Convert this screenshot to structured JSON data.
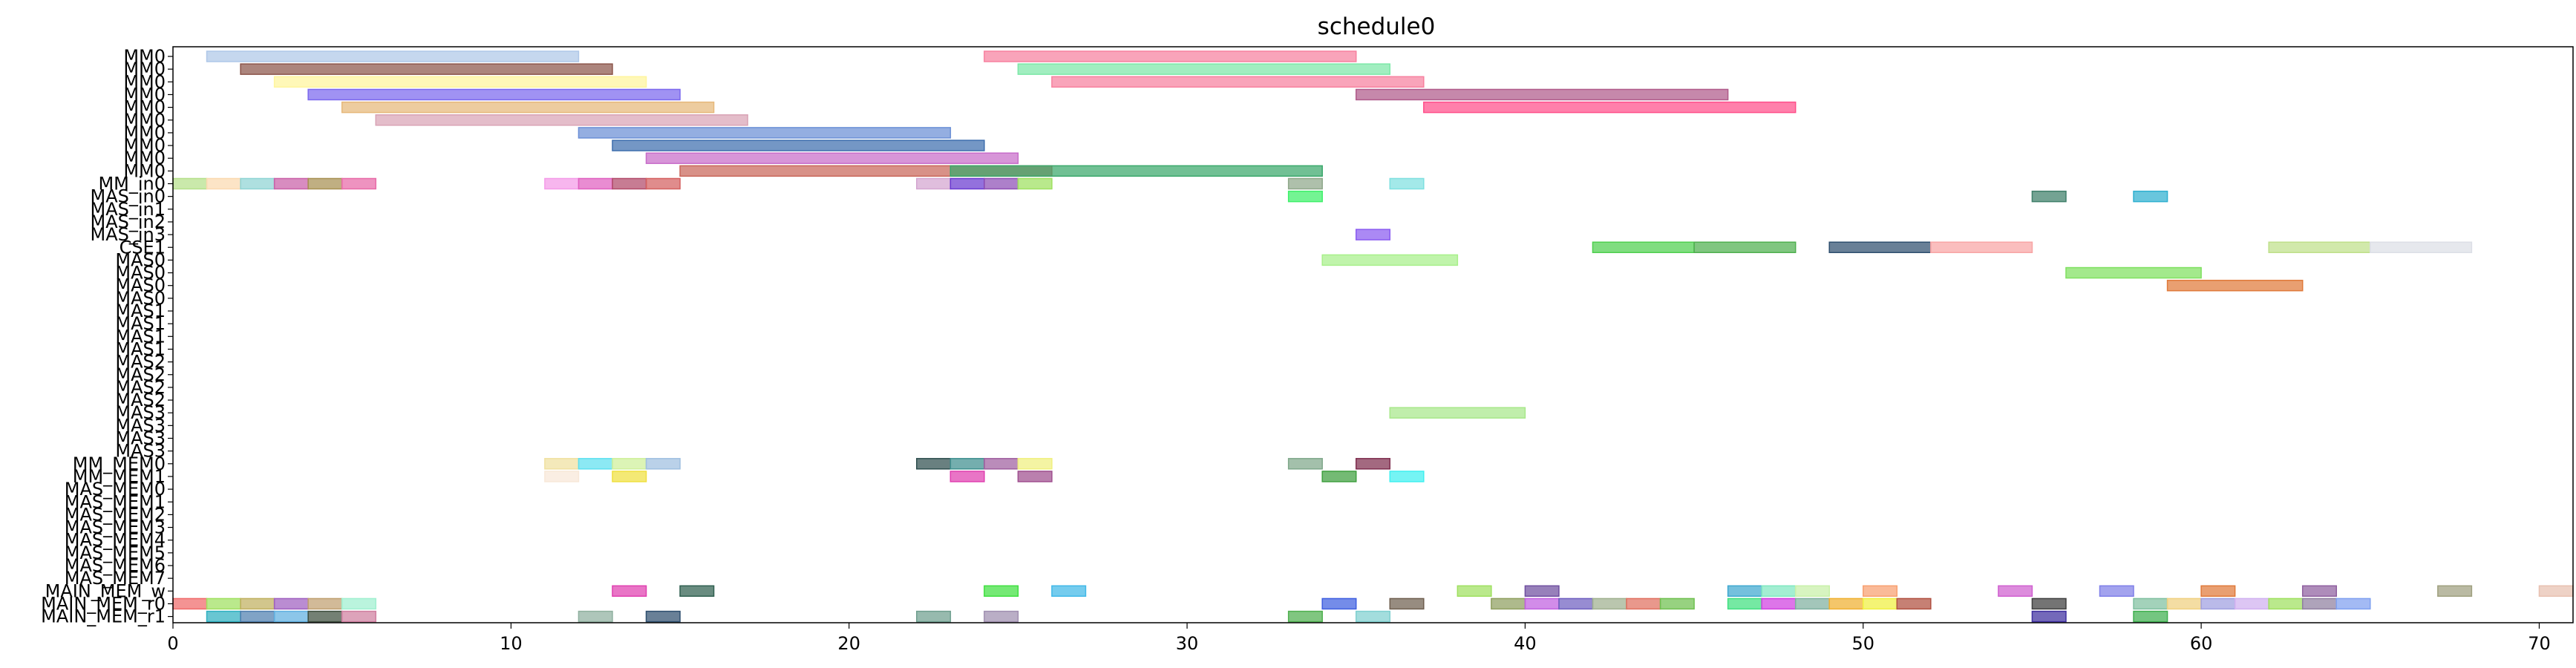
{
  "chart_data": {
    "type": "gantt",
    "title": "schedule0",
    "xlabel": "",
    "ylabel": "",
    "xlim": [
      0,
      71
    ],
    "grid": false,
    "x_ticks": [
      0,
      10,
      20,
      30,
      40,
      50,
      60,
      70
    ],
    "rows": [
      "MM0",
      "MM0",
      "MM0",
      "MM0",
      "MM0",
      "MM0",
      "MM0",
      "MM0",
      "MM0",
      "MM0",
      "MM_in0",
      "MAS_in0",
      "MAS_in1",
      "MAS_in2",
      "MAS_in3",
      "CSE1",
      "MAS0",
      "MAS0",
      "MAS0",
      "MAS0",
      "MAS1",
      "MAS1",
      "MAS1",
      "MAS1",
      "MAS2",
      "MAS2",
      "MAS2",
      "MAS2",
      "MAS3",
      "MAS3",
      "MAS3",
      "MAS3",
      "MM_MEM0",
      "MM_MEM1",
      "MAS_MEM0",
      "MAS_MEM1",
      "MAS_MEM2",
      "MAS_MEM3",
      "MAS_MEM4",
      "MAS_MEM5",
      "MAS_MEM6",
      "MAS_MEM7",
      "MAIN_MEM_w",
      "MAIN_MEM_r0",
      "MAIN_MEM_r1"
    ],
    "tasks": [
      {
        "row": 0,
        "start": 1,
        "end": 12,
        "color": "#aec7e8"
      },
      {
        "row": 0,
        "start": 24,
        "end": 35,
        "color": "#f7819f"
      },
      {
        "row": 1,
        "start": 2,
        "end": 13,
        "color": "#8c564b"
      },
      {
        "row": 1,
        "start": 25,
        "end": 36,
        "color": "#7de8a8"
      },
      {
        "row": 2,
        "start": 3,
        "end": 14,
        "color": "#fff59d"
      },
      {
        "row": 2,
        "start": 26,
        "end": 37,
        "color": "#f7819f"
      },
      {
        "row": 3,
        "start": 4,
        "end": 15,
        "color": "#7b68ee"
      },
      {
        "row": 3,
        "start": 35,
        "end": 46,
        "color": "#b05a8a"
      },
      {
        "row": 4,
        "start": 5,
        "end": 16,
        "color": "#e6b87a"
      },
      {
        "row": 4,
        "start": 37,
        "end": 48,
        "color": "#ff4f8a"
      },
      {
        "row": 5,
        "start": 6,
        "end": 17,
        "color": "#d9a3b5"
      },
      {
        "row": 6,
        "start": 12,
        "end": 23,
        "color": "#6b8fd6"
      },
      {
        "row": 7,
        "start": 13,
        "end": 24,
        "color": "#3f6fae"
      },
      {
        "row": 8,
        "start": 14,
        "end": 25,
        "color": "#c76cc9"
      },
      {
        "row": 9,
        "start": 15,
        "end": 26,
        "color": "#c9665a"
      },
      {
        "row": 9,
        "start": 23,
        "end": 34,
        "color": "#3aa86b"
      },
      {
        "row": 10,
        "start": 0,
        "end": 1,
        "color": "#b5e08a"
      },
      {
        "row": 10,
        "start": 1,
        "end": 2,
        "color": "#fbd9b0"
      },
      {
        "row": 10,
        "start": 2,
        "end": 3,
        "color": "#8fd4d4"
      },
      {
        "row": 10,
        "start": 3,
        "end": 4,
        "color": "#c960a8"
      },
      {
        "row": 10,
        "start": 4,
        "end": 5,
        "color": "#a89052"
      },
      {
        "row": 10,
        "start": 5,
        "end": 6,
        "color": "#e86aa8"
      },
      {
        "row": 10,
        "start": 11,
        "end": 12,
        "color": "#f49ae8"
      },
      {
        "row": 10,
        "start": 12,
        "end": 13,
        "color": "#e060c0"
      },
      {
        "row": 10,
        "start": 13,
        "end": 14,
        "color": "#b24a6a"
      },
      {
        "row": 10,
        "start": 14,
        "end": 15,
        "color": "#d46060"
      },
      {
        "row": 10,
        "start": 22,
        "end": 23,
        "color": "#d4a5d0"
      },
      {
        "row": 10,
        "start": 23,
        "end": 24,
        "color": "#6a3ad0"
      },
      {
        "row": 10,
        "start": 24,
        "end": 25,
        "color": "#8e4fb5"
      },
      {
        "row": 10,
        "start": 25,
        "end": 26,
        "color": "#9ee060"
      },
      {
        "row": 10,
        "start": 33,
        "end": 34,
        "color": "#8fa88a"
      },
      {
        "row": 10,
        "start": 36,
        "end": 37,
        "color": "#7fe0e0"
      },
      {
        "row": 11,
        "start": 33,
        "end": 34,
        "color": "#3ef06a"
      },
      {
        "row": 11,
        "start": 55,
        "end": 56,
        "color": "#3f7f6a"
      },
      {
        "row": 11,
        "start": 58,
        "end": 59,
        "color": "#2fb0d0"
      },
      {
        "row": 14,
        "start": 35,
        "end": 36,
        "color": "#8a5cf0"
      },
      {
        "row": 15,
        "start": 42,
        "end": 45,
        "color": "#4fd04f"
      },
      {
        "row": 15,
        "start": 45,
        "end": 48,
        "color": "#4fb04f"
      },
      {
        "row": 15,
        "start": 49,
        "end": 52,
        "color": "#2f4f6f"
      },
      {
        "row": 15,
        "start": 52,
        "end": 55,
        "color": "#f8a5a5"
      },
      {
        "row": 15,
        "start": 62,
        "end": 65,
        "color": "#bfe08a"
      },
      {
        "row": 15,
        "start": 65,
        "end": 68,
        "color": "#dcdfe6"
      },
      {
        "row": 16,
        "start": 34,
        "end": 38,
        "color": "#a8f08a"
      },
      {
        "row": 17,
        "start": 56,
        "end": 60,
        "color": "#7fe060"
      },
      {
        "row": 18,
        "start": 59,
        "end": 63,
        "color": "#e07a3a"
      },
      {
        "row": 28,
        "start": 36,
        "end": 40,
        "color": "#a8e88a"
      },
      {
        "row": 32,
        "start": 11,
        "end": 12,
        "color": "#f0e0a0"
      },
      {
        "row": 32,
        "start": 12,
        "end": 13,
        "color": "#5fe0f0"
      },
      {
        "row": 32,
        "start": 13,
        "end": 14,
        "color": "#cff09a"
      },
      {
        "row": 32,
        "start": 14,
        "end": 15,
        "color": "#9fbfe0"
      },
      {
        "row": 32,
        "start": 22,
        "end": 23,
        "color": "#2f4f4f"
      },
      {
        "row": 32,
        "start": 23,
        "end": 24,
        "color": "#3f8f8f"
      },
      {
        "row": 32,
        "start": 24,
        "end": 25,
        "color": "#9f5f9f"
      },
      {
        "row": 32,
        "start": 25,
        "end": 26,
        "color": "#f0f07f"
      },
      {
        "row": 32,
        "start": 33,
        "end": 34,
        "color": "#7fa88a"
      },
      {
        "row": 32,
        "start": 35,
        "end": 36,
        "color": "#7f2f4f"
      },
      {
        "row": 33,
        "start": 11,
        "end": 12,
        "color": "#f8e8d8"
      },
      {
        "row": 33,
        "start": 13,
        "end": 14,
        "color": "#f0e040"
      },
      {
        "row": 33,
        "start": 23,
        "end": 24,
        "color": "#e040b0"
      },
      {
        "row": 33,
        "start": 25,
        "end": 26,
        "color": "#9f4f8f"
      },
      {
        "row": 33,
        "start": 34,
        "end": 35,
        "color": "#3fa03f"
      },
      {
        "row": 33,
        "start": 36,
        "end": 37,
        "color": "#40f0f0"
      },
      {
        "row": 42,
        "start": 13,
        "end": 14,
        "color": "#e040b0"
      },
      {
        "row": 42,
        "start": 15,
        "end": 16,
        "color": "#2f5f4f"
      },
      {
        "row": 42,
        "start": 24,
        "end": 25,
        "color": "#40e040"
      },
      {
        "row": 42,
        "start": 26,
        "end": 27,
        "color": "#40b8e8"
      },
      {
        "row": 42,
        "start": 38,
        "end": 39,
        "color": "#9fe060"
      },
      {
        "row": 42,
        "start": 40,
        "end": 41,
        "color": "#6f4fa0"
      },
      {
        "row": 42,
        "start": 46,
        "end": 47,
        "color": "#3fa8d0"
      },
      {
        "row": 42,
        "start": 47,
        "end": 48,
        "color": "#7fe8c0"
      },
      {
        "row": 42,
        "start": 48,
        "end": 49,
        "color": "#c8f0a8"
      },
      {
        "row": 42,
        "start": 50,
        "end": 51,
        "color": "#f8a070"
      },
      {
        "row": 42,
        "start": 54,
        "end": 55,
        "color": "#d060d0"
      },
      {
        "row": 42,
        "start": 57,
        "end": 58,
        "color": "#7f7fe8"
      },
      {
        "row": 42,
        "start": 60,
        "end": 61,
        "color": "#e07a3a"
      },
      {
        "row": 42,
        "start": 63,
        "end": 64,
        "color": "#8f5f9f"
      },
      {
        "row": 42,
        "start": 67,
        "end": 68,
        "color": "#9fa07f"
      },
      {
        "row": 42,
        "start": 70,
        "end": 71,
        "color": "#e8c0b0"
      },
      {
        "row": 43,
        "start": 0,
        "end": 1,
        "color": "#f06a6a"
      },
      {
        "row": 43,
        "start": 1,
        "end": 2,
        "color": "#9fe060"
      },
      {
        "row": 43,
        "start": 2,
        "end": 3,
        "color": "#c0b060"
      },
      {
        "row": 43,
        "start": 3,
        "end": 4,
        "color": "#9f60c0"
      },
      {
        "row": 43,
        "start": 4,
        "end": 5,
        "color": "#c0a070"
      },
      {
        "row": 43,
        "start": 5,
        "end": 6,
        "color": "#a0f0d0"
      },
      {
        "row": 43,
        "start": 34,
        "end": 35,
        "color": "#3f5fe0"
      },
      {
        "row": 43,
        "start": 36,
        "end": 37,
        "color": "#6f5f4f"
      },
      {
        "row": 43,
        "start": 39,
        "end": 40,
        "color": "#8f9f5f"
      },
      {
        "row": 43,
        "start": 40,
        "end": 41,
        "color": "#c060e0"
      },
      {
        "row": 43,
        "start": 41,
        "end": 42,
        "color": "#6f5fc0"
      },
      {
        "row": 43,
        "start": 42,
        "end": 43,
        "color": "#9fb08f"
      },
      {
        "row": 43,
        "start": 43,
        "end": 44,
        "color": "#e07060"
      },
      {
        "row": 43,
        "start": 44,
        "end": 45,
        "color": "#6fc04f"
      },
      {
        "row": 43,
        "start": 46,
        "end": 47,
        "color": "#40e080"
      },
      {
        "row": 43,
        "start": 47,
        "end": 48,
        "color": "#d040e0"
      },
      {
        "row": 43,
        "start": 48,
        "end": 49,
        "color": "#7fb09f"
      },
      {
        "row": 43,
        "start": 49,
        "end": 50,
        "color": "#f0b030"
      },
      {
        "row": 43,
        "start": 50,
        "end": 51,
        "color": "#f0f040"
      },
      {
        "row": 43,
        "start": 51,
        "end": 52,
        "color": "#b04f3f"
      },
      {
        "row": 43,
        "start": 55,
        "end": 56,
        "color": "#3f3f3f"
      },
      {
        "row": 43,
        "start": 58,
        "end": 59,
        "color": "#7fc0a0"
      },
      {
        "row": 43,
        "start": 59,
        "end": 60,
        "color": "#f0d080"
      },
      {
        "row": 43,
        "start": 60,
        "end": 61,
        "color": "#a0a0e0"
      },
      {
        "row": 43,
        "start": 61,
        "end": 62,
        "color": "#d0b0f0"
      },
      {
        "row": 43,
        "start": 62,
        "end": 63,
        "color": "#9fe060"
      },
      {
        "row": 43,
        "start": 63,
        "end": 64,
        "color": "#8f7fa0"
      },
      {
        "row": 43,
        "start": 64,
        "end": 65,
        "color": "#7fa0f0"
      },
      {
        "row": 44,
        "start": 1,
        "end": 2,
        "color": "#2fb0c0"
      },
      {
        "row": 44,
        "start": 2,
        "end": 3,
        "color": "#4f7fb0"
      },
      {
        "row": 44,
        "start": 3,
        "end": 4,
        "color": "#5fb0e0"
      },
      {
        "row": 44,
        "start": 4,
        "end": 5,
        "color": "#3f4f3f"
      },
      {
        "row": 44,
        "start": 5,
        "end": 6,
        "color": "#d07fa0"
      },
      {
        "row": 44,
        "start": 12,
        "end": 13,
        "color": "#8fb09f"
      },
      {
        "row": 44,
        "start": 14,
        "end": 15,
        "color": "#2f4f6f"
      },
      {
        "row": 44,
        "start": 22,
        "end": 23,
        "color": "#6f9f8f"
      },
      {
        "row": 44,
        "start": 24,
        "end": 25,
        "color": "#a08fb0"
      },
      {
        "row": 44,
        "start": 33,
        "end": 34,
        "color": "#4fb04f"
      },
      {
        "row": 44,
        "start": 35,
        "end": 36,
        "color": "#7fd0d0"
      },
      {
        "row": 44,
        "start": 55,
        "end": 56,
        "color": "#3f2fa0"
      },
      {
        "row": 44,
        "start": 58,
        "end": 59,
        "color": "#3fb04f"
      }
    ]
  }
}
